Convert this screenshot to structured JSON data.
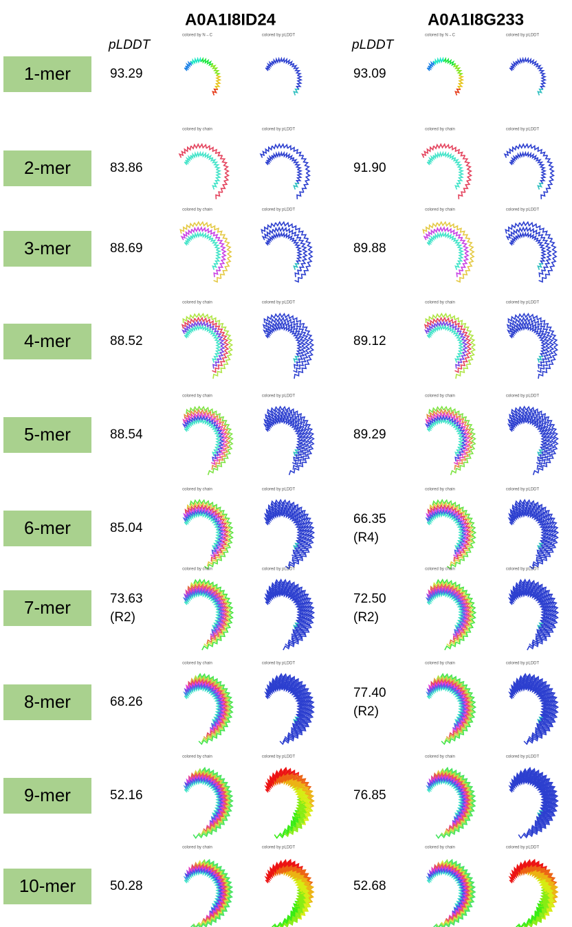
{
  "columns": [
    {
      "title": "A0A1I8ID24",
      "metric": "pLDDT"
    },
    {
      "title": "A0A1I8G233",
      "metric": "pLDDT"
    }
  ],
  "rows": [
    {
      "label": "1-mer",
      "cells": [
        {
          "value": "93.29",
          "captions": [
            "colored by N→C",
            "colored by pLDDT"
          ]
        },
        {
          "value": "93.09",
          "captions": [
            "colored by N→C",
            "colored by pLDDT"
          ]
        }
      ]
    },
    {
      "label": "2-mer",
      "cells": [
        {
          "value": "83.86",
          "captions": [
            "colored by chain",
            "colored by pLDDT"
          ]
        },
        {
          "value": "91.90",
          "captions": [
            "colored by chain",
            "colored by pLDDT"
          ]
        }
      ]
    },
    {
      "label": "3-mer",
      "cells": [
        {
          "value": "88.69",
          "captions": [
            "colored by chain",
            "colored by pLDDT"
          ]
        },
        {
          "value": "89.88",
          "captions": [
            "colored by chain",
            "colored by pLDDT"
          ]
        }
      ]
    },
    {
      "label": "4-mer",
      "cells": [
        {
          "value": "88.52",
          "captions": [
            "colored by chain",
            "colored by pLDDT"
          ]
        },
        {
          "value": "89.12",
          "captions": [
            "colored by chain",
            "colored by pLDDT"
          ]
        }
      ]
    },
    {
      "label": "5-mer",
      "cells": [
        {
          "value": "88.54",
          "captions": [
            "colored by chain",
            "colored by pLDDT"
          ]
        },
        {
          "value": "89.29",
          "captions": [
            "colored by chain",
            "colored by pLDDT"
          ]
        }
      ]
    },
    {
      "label": "6-mer",
      "cells": [
        {
          "value": "85.04",
          "captions": [
            "colored by chain",
            "colored by pLDDT"
          ]
        },
        {
          "value": "66.35",
          "note": "(R4)",
          "captions": [
            "colored by chain",
            "colored by pLDDT"
          ]
        }
      ]
    },
    {
      "label": "7-mer",
      "cells": [
        {
          "value": "73.63",
          "note": "(R2)",
          "captions": [
            "colored by chain",
            "colored by pLDDT"
          ]
        },
        {
          "value": "72.50",
          "note": "(R2)",
          "captions": [
            "colored by chain",
            "colored by pLDDT"
          ]
        }
      ]
    },
    {
      "label": "8-mer",
      "cells": [
        {
          "value": "68.26",
          "captions": [
            "colored by chain",
            "colored by pLDDT"
          ]
        },
        {
          "value": "77.40",
          "note": "(R2)",
          "captions": [
            "colored by chain",
            "colored by pLDDT"
          ]
        }
      ]
    },
    {
      "label": "9-mer",
      "cells": [
        {
          "value": "52.16",
          "captions": [
            "colored by chain",
            "colored by pLDDT"
          ]
        },
        {
          "value": "76.85",
          "captions": [
            "colored by chain",
            "colored by pLDDT"
          ]
        }
      ]
    },
    {
      "label": "10-mer",
      "cells": [
        {
          "value": "50.28",
          "captions": [
            "colored by chain",
            "colored by pLDDT"
          ]
        },
        {
          "value": "52.68",
          "captions": [
            "colored by chain",
            "colored by pLDDT"
          ]
        }
      ]
    }
  ]
}
